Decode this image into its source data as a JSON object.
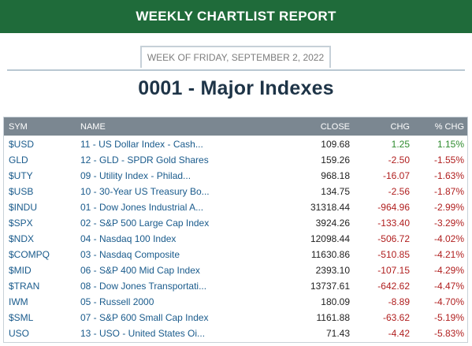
{
  "banner": {
    "title": "WEEKLY CHARTLIST REPORT"
  },
  "week": {
    "label": "WEEK OF FRIDAY, SEPTEMBER 2, 2022"
  },
  "page": {
    "title": "0001 - Major Indexes"
  },
  "colors": {
    "banner": "#1f6b3a",
    "header": "#7b8791",
    "positive": "#2e8b2e",
    "negative": "#b01e1e",
    "link": "#1a5b8c"
  },
  "table": {
    "headers": {
      "sym": "SYM",
      "name": "NAME",
      "close": "CLOSE",
      "chg": "CHG",
      "pct": "% CHG"
    },
    "rows": [
      {
        "sym": "$USD",
        "name": "11 - US Dollar Index - Cash...",
        "close": "109.68",
        "chg": "1.25",
        "pct": "1.15%",
        "dir": "pos"
      },
      {
        "sym": "GLD",
        "name": "12 - GLD - SPDR Gold Shares",
        "close": "159.26",
        "chg": "-2.50",
        "pct": "-1.55%",
        "dir": "neg"
      },
      {
        "sym": "$UTY",
        "name": "09 - Utility Index - Philad...",
        "close": "968.18",
        "chg": "-16.07",
        "pct": "-1.63%",
        "dir": "neg"
      },
      {
        "sym": "$USB",
        "name": "10 - 30-Year US Treasury Bo...",
        "close": "134.75",
        "chg": "-2.56",
        "pct": "-1.87%",
        "dir": "neg"
      },
      {
        "sym": "$INDU",
        "name": "01 - Dow Jones Industrial A...",
        "close": "31318.44",
        "chg": "-964.96",
        "pct": "-2.99%",
        "dir": "neg"
      },
      {
        "sym": "$SPX",
        "name": "02 - S&P 500 Large Cap Index",
        "close": "3924.26",
        "chg": "-133.40",
        "pct": "-3.29%",
        "dir": "neg"
      },
      {
        "sym": "$NDX",
        "name": "04 - Nasdaq 100 Index",
        "close": "12098.44",
        "chg": "-506.72",
        "pct": "-4.02%",
        "dir": "neg"
      },
      {
        "sym": "$COMPQ",
        "name": "03 - Nasdaq Composite",
        "close": "11630.86",
        "chg": "-510.85",
        "pct": "-4.21%",
        "dir": "neg"
      },
      {
        "sym": "$MID",
        "name": "06 - S&P 400 Mid Cap Index",
        "close": "2393.10",
        "chg": "-107.15",
        "pct": "-4.29%",
        "dir": "neg"
      },
      {
        "sym": "$TRAN",
        "name": "08 - Dow Jones Transportati...",
        "close": "13737.61",
        "chg": "-642.62",
        "pct": "-4.47%",
        "dir": "neg"
      },
      {
        "sym": "IWM",
        "name": "05 - Russell 2000",
        "close": "180.09",
        "chg": "-8.89",
        "pct": "-4.70%",
        "dir": "neg"
      },
      {
        "sym": "$SML",
        "name": "07 - S&P 600 Small Cap Index",
        "close": "1161.88",
        "chg": "-63.62",
        "pct": "-5.19%",
        "dir": "neg"
      },
      {
        "sym": "USO",
        "name": "13 - USO - United States Oi...",
        "close": "71.43",
        "chg": "-4.42",
        "pct": "-5.83%",
        "dir": "neg"
      }
    ]
  }
}
